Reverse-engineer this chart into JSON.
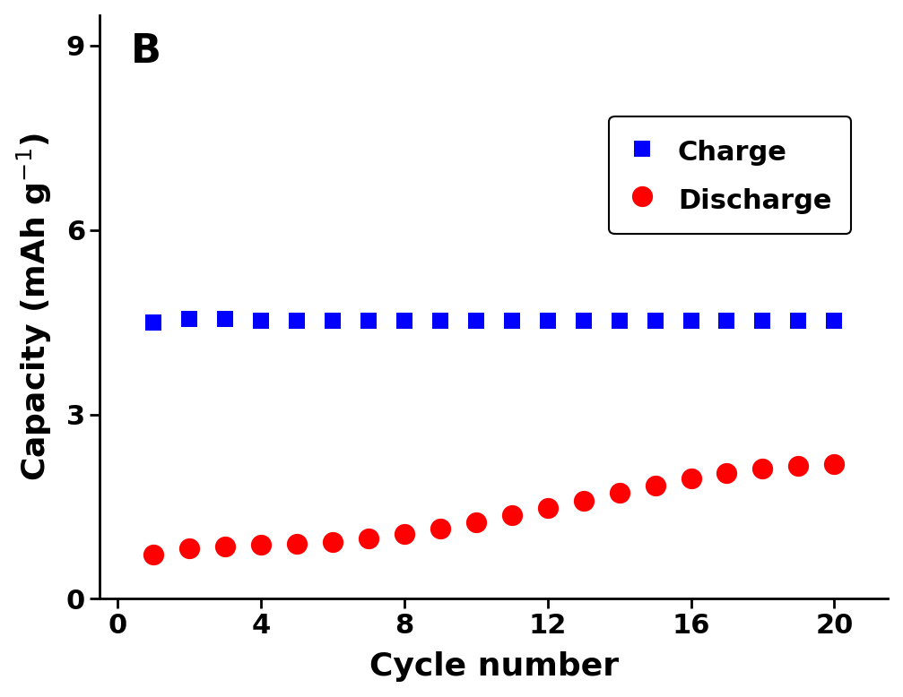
{
  "charge_x": [
    1,
    2,
    3,
    4,
    5,
    6,
    7,
    8,
    9,
    10,
    11,
    12,
    13,
    14,
    15,
    16,
    17,
    18,
    19,
    20
  ],
  "charge_y": [
    4.5,
    4.55,
    4.55,
    4.53,
    4.53,
    4.53,
    4.52,
    4.52,
    4.52,
    4.52,
    4.52,
    4.52,
    4.52,
    4.52,
    4.52,
    4.52,
    4.52,
    4.52,
    4.52,
    4.52
  ],
  "discharge_x": [
    1,
    2,
    3,
    4,
    5,
    6,
    7,
    8,
    9,
    10,
    11,
    12,
    13,
    14,
    15,
    16,
    17,
    18,
    19,
    20
  ],
  "discharge_y": [
    0.72,
    0.82,
    0.85,
    0.88,
    0.9,
    0.93,
    0.98,
    1.05,
    1.14,
    1.24,
    1.36,
    1.48,
    1.6,
    1.72,
    1.85,
    1.96,
    2.05,
    2.12,
    2.17,
    2.2
  ],
  "charge_color": "#0000FF",
  "discharge_color": "#FF0000",
  "xlabel": "Cycle number",
  "panel_label": "B",
  "xlim": [
    -0.5,
    21.5
  ],
  "ylim": [
    0,
    9.5
  ],
  "yticks": [
    0,
    3,
    6,
    9
  ],
  "xticks": [
    0,
    4,
    8,
    12,
    16,
    20
  ],
  "legend_charge": "Charge",
  "legend_discharge": "Discharge",
  "label_fontsize": 26,
  "tick_fontsize": 22,
  "legend_fontsize": 22,
  "panel_fontsize": 32,
  "marker_size_charge": 160,
  "marker_size_discharge": 280,
  "background_color": "#ffffff"
}
